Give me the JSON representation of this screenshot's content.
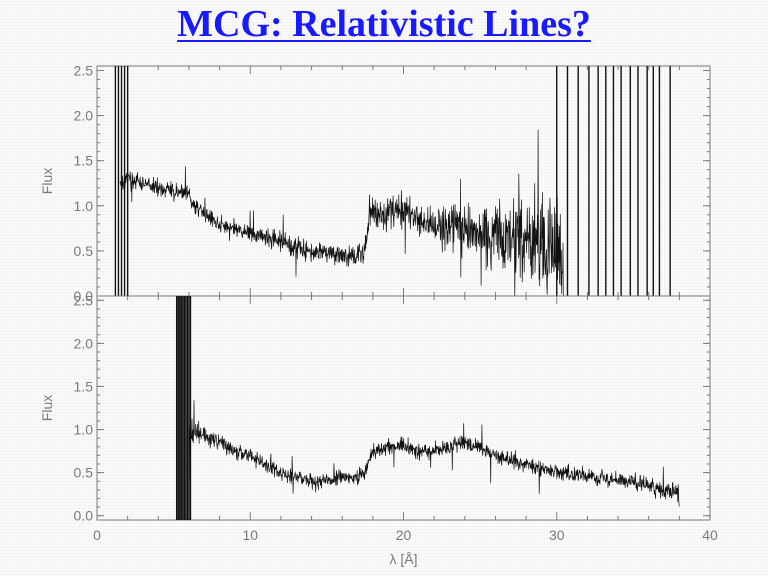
{
  "page": {
    "title": "MCG: Relativistic Lines?"
  },
  "chart_data": [
    {
      "type": "line",
      "id": "top",
      "title": "",
      "xlabel": "",
      "ylabel": "Flux",
      "xlim": [
        0,
        40
      ],
      "ylim": [
        0,
        2.55
      ],
      "yticks": [
        0.0,
        0.5,
        1.0,
        1.5,
        2.0,
        2.5
      ],
      "ytick_labels": [
        "0.0",
        "0.5",
        "1.0",
        "1.5",
        "2.0",
        "2.5"
      ],
      "xticks": [
        0,
        10,
        20,
        30,
        40
      ],
      "show_x_tick_labels": false,
      "grid": false,
      "series": [
        {
          "x": [
            1.5,
            2.0,
            3.0,
            4.0,
            5.0,
            6.0,
            6.3,
            7.0,
            8.0,
            9.0,
            10.0,
            11.0,
            12.0,
            13.0,
            14.0,
            15.0,
            16.0,
            17.0,
            17.5,
            17.8,
            18.5,
            19.0,
            20.0,
            21.0,
            22.0,
            23.0,
            24.0,
            25.0,
            26.0,
            27.0,
            28.0,
            29.0,
            30.0,
            30.5
          ],
          "y": [
            1.25,
            1.3,
            1.25,
            1.2,
            1.15,
            1.15,
            1.0,
            0.9,
            0.8,
            0.75,
            0.7,
            0.65,
            0.6,
            0.55,
            0.5,
            0.5,
            0.45,
            0.45,
            0.5,
            0.95,
            0.9,
            0.95,
            0.95,
            0.85,
            0.8,
            0.75,
            0.75,
            0.7,
            0.7,
            0.65,
            0.6,
            0.55,
            0.5,
            0.5
          ],
          "noise": [
            0.08,
            0.08,
            0.08,
            0.08,
            0.08,
            0.08,
            0.08,
            0.08,
            0.08,
            0.08,
            0.08,
            0.09,
            0.09,
            0.1,
            0.1,
            0.1,
            0.1,
            0.1,
            0.1,
            0.15,
            0.15,
            0.15,
            0.15,
            0.15,
            0.18,
            0.2,
            0.22,
            0.25,
            0.3,
            0.35,
            0.4,
            0.45,
            0.5,
            0.5
          ]
        }
      ],
      "spikes": [
        1.2,
        1.4,
        1.6,
        1.8,
        2.0,
        30.0,
        30.7,
        31.4,
        32.1,
        32.7,
        33.2,
        33.7,
        34.2,
        34.8,
        35.3,
        35.9,
        36.3,
        36.7,
        37.4
      ]
    },
    {
      "type": "line",
      "id": "bottom",
      "title": "",
      "xlabel": "λ [Å]",
      "ylabel": "Flux",
      "xlim": [
        0,
        40
      ],
      "ylim": [
        -0.05,
        2.55
      ],
      "yticks": [
        0.0,
        0.5,
        1.0,
        1.5,
        2.0,
        2.5
      ],
      "ytick_labels": [
        "0.0",
        "0.5",
        "1.0",
        "1.5",
        "2.0",
        "2.5"
      ],
      "xticks": [
        0,
        10,
        20,
        30,
        40
      ],
      "xtick_labels": [
        "0",
        "10",
        "20",
        "30",
        "40"
      ],
      "grid": false,
      "series": [
        {
          "x": [
            6.0,
            6.5,
            7.0,
            8.0,
            9.0,
            10.0,
            11.0,
            12.0,
            13.0,
            14.0,
            15.0,
            16.0,
            17.0,
            17.5,
            18.0,
            19.0,
            20.0,
            21.0,
            22.0,
            23.0,
            24.0,
            25.0,
            26.0,
            27.0,
            28.0,
            29.0,
            30.0,
            31.0,
            32.0,
            33.0,
            34.0,
            35.0,
            36.0,
            37.0,
            38.0
          ],
          "y": [
            0.9,
            1.0,
            0.95,
            0.85,
            0.75,
            0.7,
            0.6,
            0.5,
            0.45,
            0.4,
            0.4,
            0.45,
            0.45,
            0.5,
            0.75,
            0.8,
            0.8,
            0.75,
            0.75,
            0.8,
            0.85,
            0.8,
            0.7,
            0.65,
            0.6,
            0.55,
            0.5,
            0.5,
            0.45,
            0.45,
            0.4,
            0.4,
            0.35,
            0.3,
            0.25
          ],
          "noise": [
            0.15,
            0.12,
            0.1,
            0.08,
            0.08,
            0.07,
            0.07,
            0.07,
            0.07,
            0.07,
            0.07,
            0.07,
            0.07,
            0.07,
            0.08,
            0.08,
            0.08,
            0.08,
            0.08,
            0.08,
            0.08,
            0.08,
            0.08,
            0.08,
            0.08,
            0.08,
            0.08,
            0.08,
            0.08,
            0.08,
            0.08,
            0.08,
            0.08,
            0.08,
            0.08
          ]
        }
      ],
      "spikes": [
        5.2,
        5.3,
        5.4,
        5.5,
        5.6,
        5.7,
        5.8,
        5.9,
        6.0,
        6.1
      ]
    }
  ]
}
